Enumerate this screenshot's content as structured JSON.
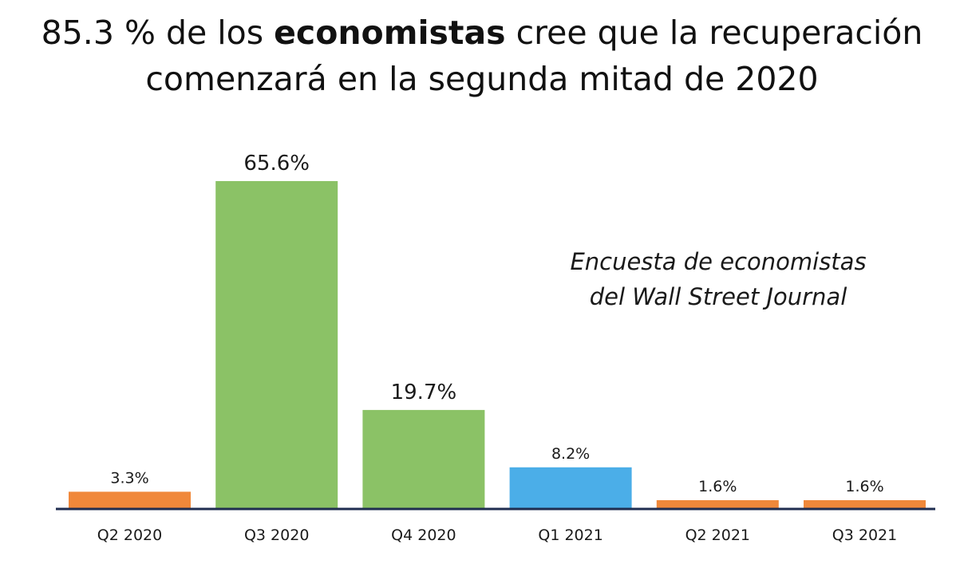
{
  "title": {
    "prefix": "85.3 % de los ",
    "bold": "economistas",
    "suffix": " cree que la recuperación",
    "line2": "comenzará en la segunda mitad de 2020"
  },
  "annotation": {
    "line1": "Encuesta de economistas",
    "line2": "del Wall Street Journal"
  },
  "colors": {
    "orange": "#F0883A",
    "green": "#8BC266",
    "blue": "#4BAEE8",
    "axis": "#1F2D50"
  },
  "chart_data": {
    "type": "bar",
    "title": "85.3 % de los economistas cree que la recuperación comenzará en la segunda mitad de 2020",
    "xlabel": "",
    "ylabel": "",
    "ylim": [
      0,
      65.6
    ],
    "grid": false,
    "categories": [
      "Q2 2020",
      "Q3 2020",
      "Q4 2020",
      "Q1 2021",
      "Q2 2021",
      "Q3 2021"
    ],
    "values": [
      3.3,
      65.6,
      19.7,
      8.2,
      1.6,
      1.6
    ],
    "labels": [
      "3.3%",
      "65.6%",
      "19.7%",
      "8.2%",
      "1.6%",
      "1.6%"
    ],
    "bar_colors": [
      "#F0883A",
      "#8BC266",
      "#8BC266",
      "#4BAEE8",
      "#F0883A",
      "#F0883A"
    ]
  }
}
